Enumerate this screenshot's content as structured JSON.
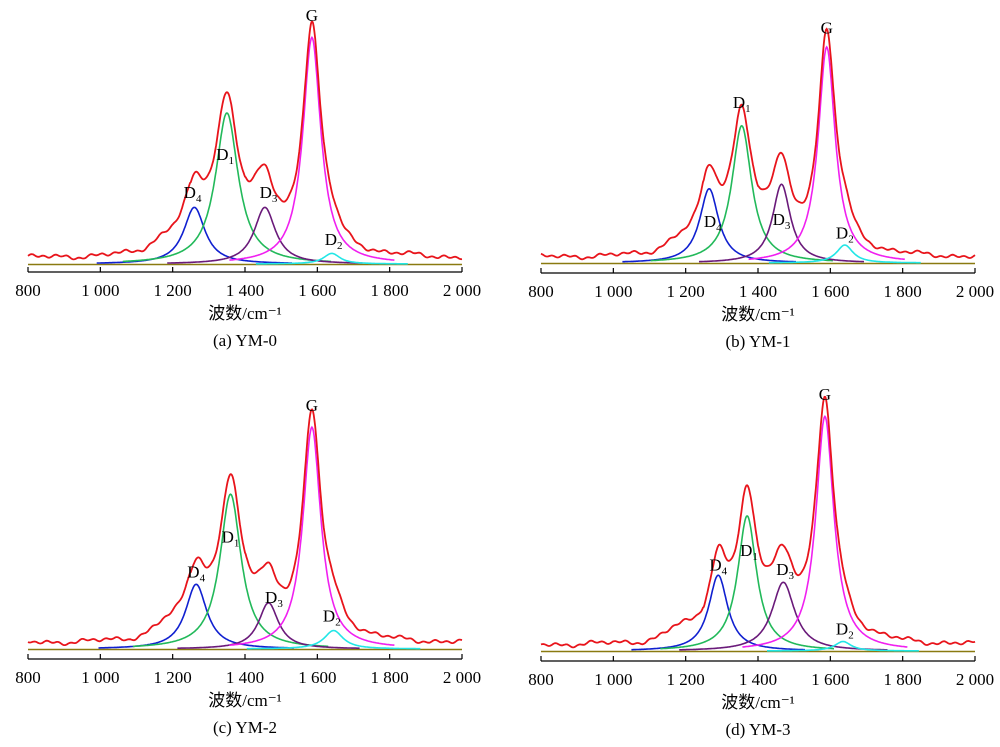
{
  "colors": {
    "envelope": "#e8141b",
    "D1": "#22b95a",
    "D2": "#22e6e6",
    "D3": "#6a1a7a",
    "D4": "#1020d0",
    "G": "#f020f0",
    "baseline": "#8a7a10"
  },
  "chart_data": [
    {
      "type": "line",
      "caption": "(a) YM-0",
      "xlabel": "波数/cm⁻¹",
      "xlim": [
        800,
        2000
      ],
      "xticks": [
        800,
        1000,
        1200,
        1400,
        1600,
        1800,
        2000
      ],
      "xtick_labels": [
        "800",
        "1 000",
        "1 200",
        "1 400",
        "1 600",
        "1 800",
        "2 000"
      ],
      "ylim": [
        0,
        105
      ],
      "peaks": [
        {
          "name": "D4",
          "label": "D",
          "sub": "4",
          "center": 1260,
          "height": 24,
          "width": 45
        },
        {
          "name": "D1",
          "label": "D",
          "sub": "1",
          "center": 1350,
          "height": 64,
          "width": 48
        },
        {
          "name": "D3",
          "label": "D",
          "sub": "3",
          "center": 1455,
          "height": 24,
          "width": 45
        },
        {
          "name": "G",
          "label": "G",
          "sub": "",
          "center": 1585,
          "height": 96,
          "width": 38
        },
        {
          "name": "D2",
          "label": "D",
          "sub": "2",
          "center": 1640,
          "height": 4.5,
          "width": 35
        }
      ],
      "noise_level": 2.5,
      "label_positions": {
        "D4": [
          1255,
          28
        ],
        "D1": [
          1345,
          44
        ],
        "D3": [
          1465,
          28
        ],
        "G": [
          1585,
          103
        ],
        "D2": [
          1645,
          8
        ]
      }
    },
    {
      "type": "line",
      "caption": "(b) YM-1",
      "xlabel": "波数/cm⁻¹",
      "xlim": [
        800,
        2000
      ],
      "xticks": [
        800,
        1000,
        1200,
        1400,
        1600,
        1800,
        2000
      ],
      "xtick_labels": [
        "800",
        "1 000",
        "1 200",
        "1 400",
        "1 600",
        "1 800",
        "2 000"
      ],
      "ylim": [
        0,
        105
      ],
      "peaks": [
        {
          "name": "D4",
          "label": "D",
          "sub": "4",
          "center": 1265,
          "height": 33,
          "width": 40
        },
        {
          "name": "D1",
          "label": "D",
          "sub": "1",
          "center": 1355,
          "height": 61,
          "width": 42
        },
        {
          "name": "D3",
          "label": "D",
          "sub": "3",
          "center": 1465,
          "height": 35,
          "width": 38
        },
        {
          "name": "G",
          "label": "G",
          "sub": "",
          "center": 1590,
          "height": 96,
          "width": 36
        },
        {
          "name": "D2",
          "label": "D",
          "sub": "2",
          "center": 1640,
          "height": 8,
          "width": 35
        }
      ],
      "noise_level": 2.5,
      "label_positions": {
        "D4": [
          1275,
          16
        ],
        "D1": [
          1355,
          69
        ],
        "D3": [
          1465,
          17
        ],
        "G": [
          1590,
          102
        ],
        "D2": [
          1640,
          11
        ]
      }
    },
    {
      "type": "line",
      "caption": "(c) YM-2",
      "xlabel": "波数/cm⁻¹",
      "xlim": [
        800,
        2000
      ],
      "xticks": [
        800,
        1000,
        1200,
        1400,
        1600,
        1800,
        2000
      ],
      "xtick_labels": [
        "800",
        "1 000",
        "1 200",
        "1 400",
        "1 600",
        "1 800",
        "2 000"
      ],
      "ylim": [
        0,
        105
      ],
      "peaks": [
        {
          "name": "D4",
          "label": "D",
          "sub": "4",
          "center": 1265,
          "height": 28,
          "width": 45
        },
        {
          "name": "D1",
          "label": "D",
          "sub": "1",
          "center": 1360,
          "height": 67,
          "width": 45
        },
        {
          "name": "D3",
          "label": "D",
          "sub": "3",
          "center": 1465,
          "height": 20,
          "width": 42
        },
        {
          "name": "G",
          "label": "G",
          "sub": "",
          "center": 1585,
          "height": 96,
          "width": 38
        },
        {
          "name": "D2",
          "label": "D",
          "sub": "2",
          "center": 1645,
          "height": 8,
          "width": 40
        }
      ],
      "noise_level": 2.5,
      "label_positions": {
        "D4": [
          1265,
          31
        ],
        "D1": [
          1360,
          46
        ],
        "D3": [
          1480,
          20
        ],
        "G": [
          1585,
          103
        ],
        "D2": [
          1640,
          12
        ]
      }
    },
    {
      "type": "line",
      "caption": "(d) YM-3",
      "xlabel": "波数/cm⁻¹",
      "xlim": [
        800,
        2000
      ],
      "xticks": [
        800,
        1000,
        1200,
        1400,
        1600,
        1800,
        2000
      ],
      "xtick_labels": [
        "800",
        "1 000",
        "1 200",
        "1 400",
        "1 600",
        "1 800",
        "2 000"
      ],
      "ylim": [
        0,
        105
      ],
      "peaks": [
        {
          "name": "D4",
          "label": "D",
          "sub": "4",
          "center": 1290,
          "height": 32,
          "width": 40
        },
        {
          "name": "D1",
          "label": "D",
          "sub": "1",
          "center": 1370,
          "height": 57,
          "width": 40
        },
        {
          "name": "D3",
          "label": "D",
          "sub": "3",
          "center": 1470,
          "height": 29,
          "width": 48
        },
        {
          "name": "G",
          "label": "G",
          "sub": "",
          "center": 1585,
          "height": 99,
          "width": 38
        },
        {
          "name": "D2",
          "label": "D",
          "sub": "2",
          "center": 1635,
          "height": 4,
          "width": 35
        }
      ],
      "noise_level": 2.5,
      "label_positions": {
        "D4": [
          1290,
          34
        ],
        "D1": [
          1375,
          40
        ],
        "D3": [
          1475,
          32
        ],
        "G": [
          1585,
          106
        ],
        "D2": [
          1640,
          7
        ]
      }
    }
  ]
}
